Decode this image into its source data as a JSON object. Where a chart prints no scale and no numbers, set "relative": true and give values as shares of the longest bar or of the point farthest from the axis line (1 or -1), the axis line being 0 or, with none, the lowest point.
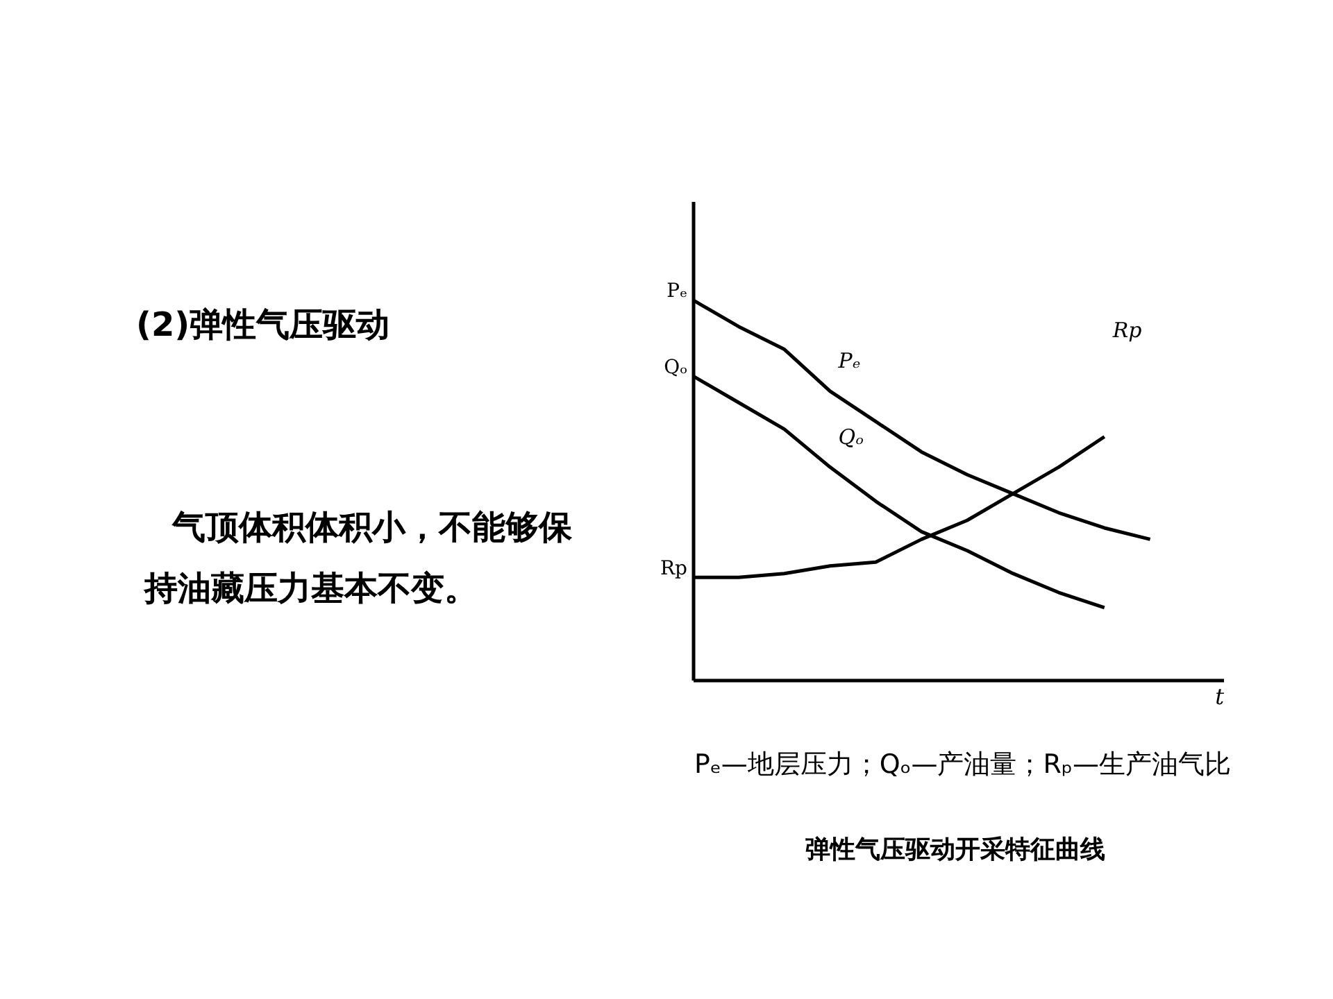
{
  "chart_data": {
    "type": "line",
    "title": "(2)弹性气压驱动",
    "subtitle": "气顶体积体积小，不能够保持油藏压力基本不变。",
    "xlabel": "t",
    "relative": true,
    "legend": false,
    "grid": false,
    "marker": "none",
    "line_style": "solid",
    "categories": [
      null,
      null,
      null,
      null,
      null,
      null,
      null,
      null,
      null,
      null,
      null
    ],
    "series": [
      {
        "name": "Pₑ",
        "color": "#000000",
        "values": [
          1.0,
          0.93,
          0.87,
          0.76,
          0.68,
          0.6,
          0.54,
          0.49,
          0.44,
          0.4,
          0.37
        ]
      },
      {
        "name": "Qₒ",
        "color": "#000000",
        "values": [
          0.8,
          0.73,
          0.66,
          0.56,
          0.47,
          0.39,
          0.34,
          0.28,
          0.23,
          0.19,
          null
        ]
      },
      {
        "name": "Rp",
        "color": "#000000",
        "values": [
          0.27,
          0.27,
          0.28,
          0.3,
          0.31,
          0.37,
          0.42,
          0.49,
          0.56,
          0.64,
          null
        ]
      }
    ],
    "annotations": [
      "Pₑ—地层压力；Qₒ—产油量；Rₚ—生产油气比",
      "弹性气压驱动开采特征曲线"
    ]
  }
}
